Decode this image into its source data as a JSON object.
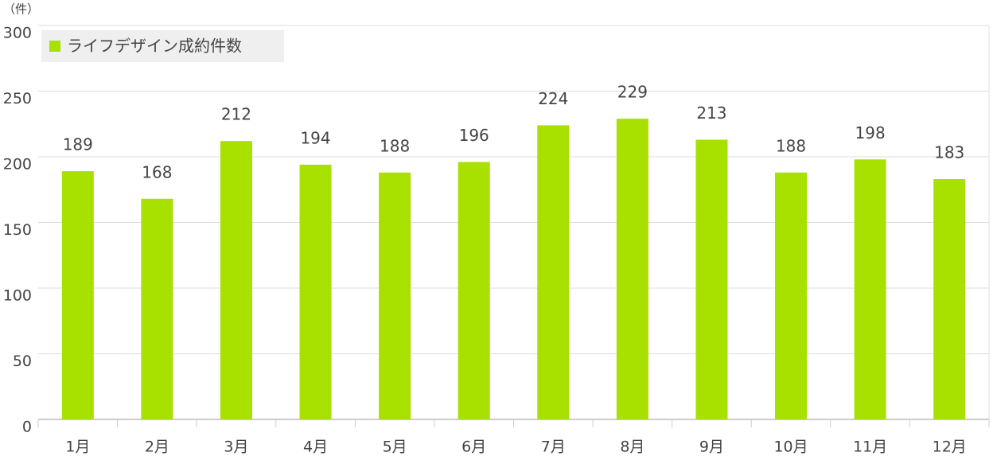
{
  "chart_data": {
    "type": "bar",
    "y_axis_label": "（件）",
    "categories": [
      "1月",
      "2月",
      "3月",
      "4月",
      "5月",
      "6月",
      "7月",
      "8月",
      "9月",
      "10月",
      "11月",
      "12月"
    ],
    "series": [
      {
        "name": "ライフデザイン成約件数",
        "color": "#a8e000",
        "values": [
          189,
          168,
          212,
          194,
          188,
          196,
          224,
          229,
          213,
          188,
          198,
          183
        ]
      }
    ],
    "ylim": [
      0,
      300
    ],
    "yticks": [
      0,
      50,
      100,
      150,
      200,
      250,
      300
    ],
    "grid": true,
    "legend": "upper left",
    "data_labels": true
  }
}
